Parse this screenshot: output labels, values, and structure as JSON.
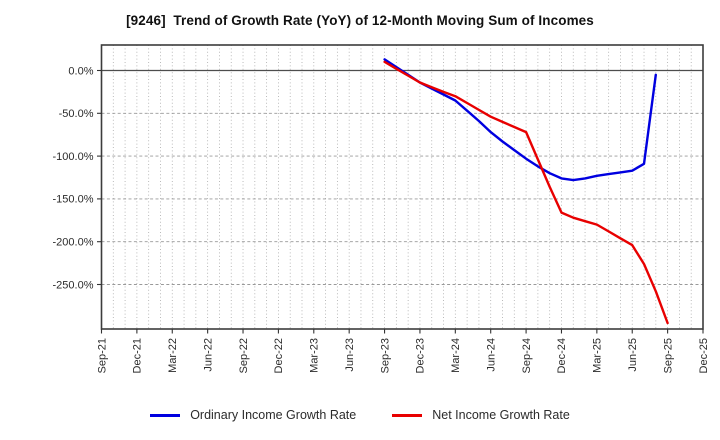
{
  "title": "[9246]  Trend of Growth Rate (YoY) of 12-Month Moving Sum of Incomes",
  "legend": [
    {
      "label": "Ordinary Income Growth Rate",
      "color": "#0000e0"
    },
    {
      "label": "Net Income Growth Rate",
      "color": "#e80000"
    }
  ],
  "chart_data": {
    "type": "line",
    "title": "[9246]  Trend of Growth Rate (YoY) of 12-Month Moving Sum of Incomes",
    "xlabel": "",
    "ylabel": "",
    "grid": true,
    "legend_position": "bottom",
    "x_axis": {
      "start": "Sep-21",
      "end": "Dec-25",
      "tick_step_months": 3,
      "tick_labels": [
        "Sep-21",
        "Dec-21",
        "Mar-22",
        "Jun-22",
        "Sep-22",
        "Dec-22",
        "Mar-23",
        "Jun-23",
        "Sep-23",
        "Dec-23",
        "Mar-24",
        "Jun-24",
        "Sep-24",
        "Dec-24",
        "Mar-25",
        "Jun-25",
        "Sep-25",
        "Dec-25"
      ]
    },
    "y_axis": {
      "unit": "%",
      "ticks": [
        0,
        -50,
        -100,
        -150,
        -200,
        -250
      ],
      "tick_labels": [
        "0.0%",
        "-50.0%",
        "-100.0%",
        "-150.0%",
        "-200.0%",
        "-250.0%"
      ],
      "ylim": [
        -302,
        30
      ]
    },
    "series": [
      {
        "name": "Ordinary Income Growth Rate",
        "color": "#0000e0",
        "x": [
          "Sep-23",
          "Oct-23",
          "Nov-23",
          "Dec-23",
          "Jan-24",
          "Feb-24",
          "Mar-24",
          "Apr-24",
          "May-24",
          "Jun-24",
          "Jul-24",
          "Aug-24",
          "Sep-24",
          "Oct-24",
          "Nov-24",
          "Dec-24",
          "Jan-25",
          "Feb-25",
          "Mar-25",
          "Apr-25",
          "May-25",
          "Jun-25",
          "Jul-25",
          "Aug-25"
        ],
        "values": [
          13,
          4,
          -5,
          -14,
          -21,
          -28,
          -35,
          -47,
          -59,
          -72,
          -83,
          -93,
          -103,
          -112,
          -120,
          -126,
          -128,
          -126,
          -123,
          -121,
          -119,
          -117,
          -109,
          -5
        ]
      },
      {
        "name": "Net Income Growth Rate",
        "color": "#e80000",
        "x": [
          "Sep-23",
          "Oct-23",
          "Nov-23",
          "Dec-23",
          "Jan-24",
          "Feb-24",
          "Mar-24",
          "Apr-24",
          "May-24",
          "Jun-24",
          "Jul-24",
          "Aug-24",
          "Sep-24",
          "Oct-24",
          "Nov-24",
          "Dec-24",
          "Jan-25",
          "Feb-25",
          "Mar-25",
          "Apr-25",
          "May-25",
          "Jun-25",
          "Jul-25",
          "Aug-25",
          "Sep-25"
        ],
        "values": [
          10,
          2,
          -6,
          -14,
          -19.5,
          -25,
          -30,
          -38,
          -46,
          -54,
          -60,
          -66,
          -72,
          -104,
          -136,
          -166,
          -172,
          -176,
          -180,
          -188,
          -196,
          -204,
          -226,
          -258,
          -295
        ]
      }
    ]
  }
}
